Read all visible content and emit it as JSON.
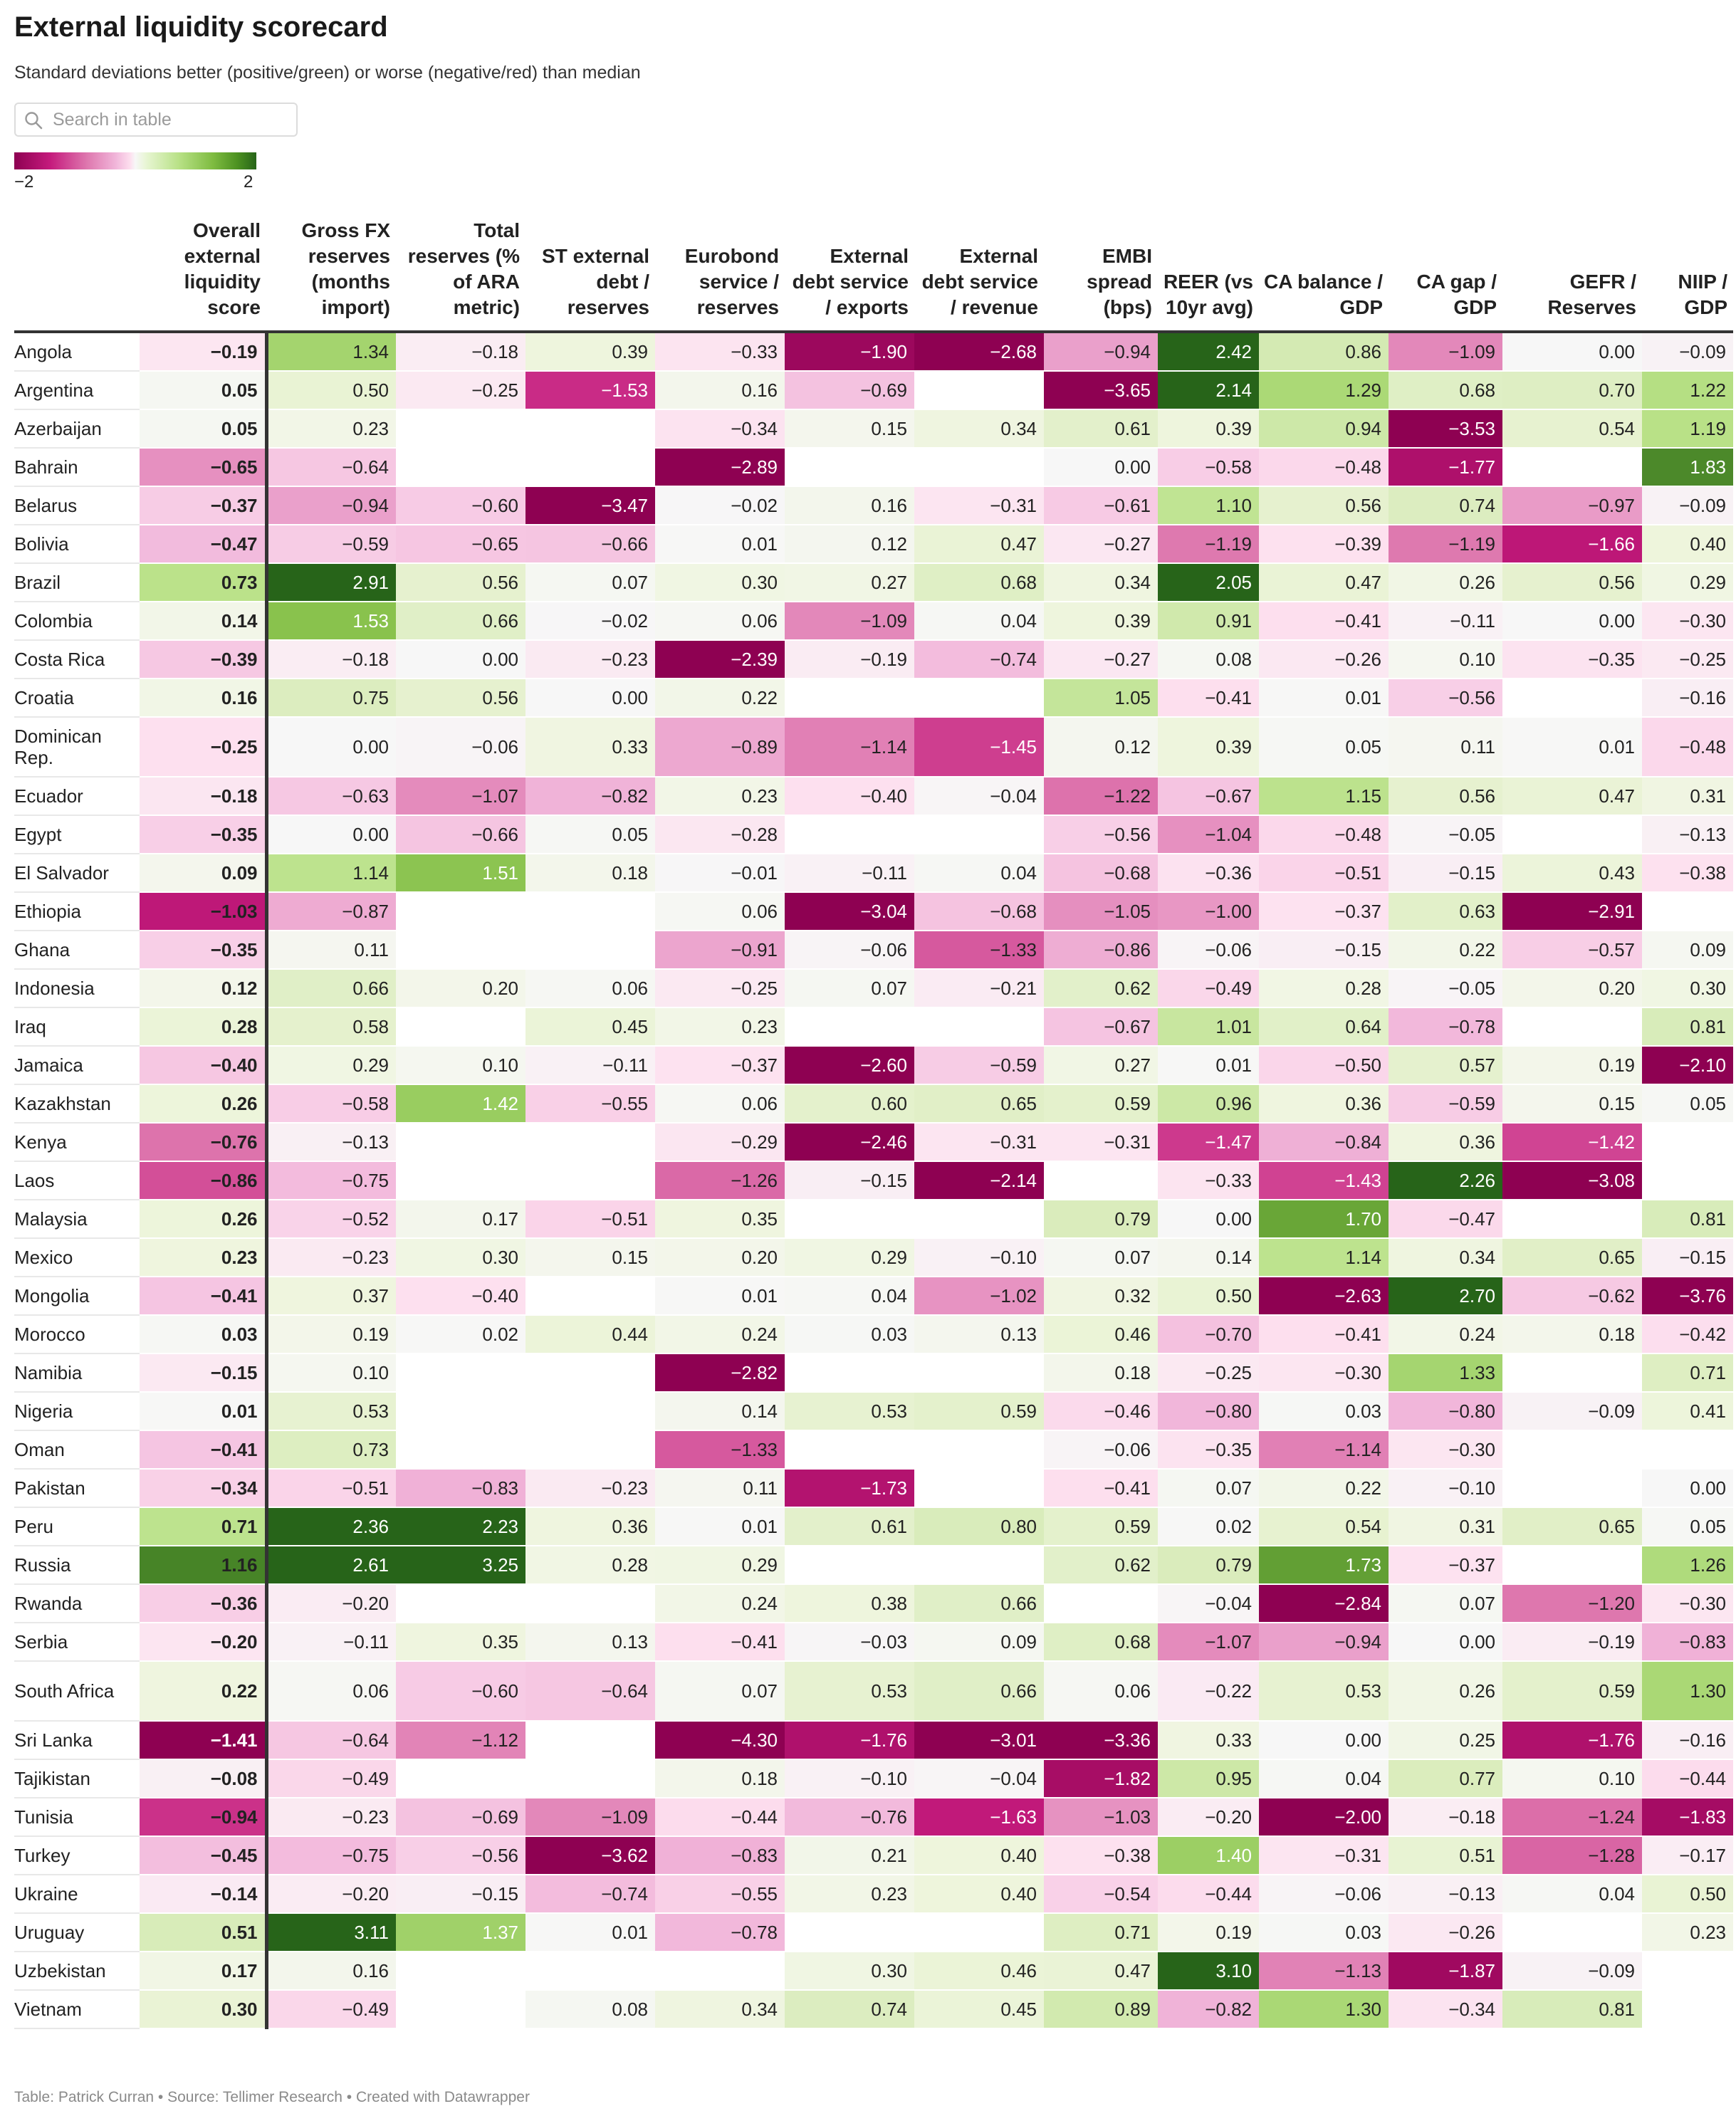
{
  "header": {
    "title": "External liquidity scorecard",
    "subtitle": "Standard deviations better (positive/green) or worse (negative/red) than median"
  },
  "search": {
    "placeholder": "Search in table"
  },
  "legend": {
    "min_label": "−2",
    "max_label": "2",
    "min": -2,
    "max": 2,
    "colors": {
      "negative": "#8e0152",
      "neutral": "#f7f7f7",
      "positive": "#276419"
    }
  },
  "columns": [
    "",
    "Overall external liquidity score",
    "Gross FX reserves (months import)",
    "Total reserves (% of ARA metric)",
    "ST external debt / reserves",
    "Eurobond service / reserves",
    "External debt service / exports",
    "External debt service / revenue",
    "EMBI spread (bps)",
    "REER (vs 10yr avg)",
    "CA balance / GDP",
    "CA gap / GDP",
    "GEFR / Reserves",
    "NIIP / GDP"
  ],
  "rows": [
    {
      "country": "Angola",
      "values": [
        -0.19,
        1.34,
        -0.18,
        0.39,
        -0.33,
        -1.9,
        -2.68,
        -0.94,
        2.42,
        0.86,
        -1.09,
        0.0,
        -0.09
      ]
    },
    {
      "country": "Argentina",
      "values": [
        0.05,
        0.5,
        -0.25,
        -1.53,
        0.16,
        -0.69,
        null,
        -3.65,
        2.14,
        1.29,
        0.68,
        0.7,
        1.22
      ]
    },
    {
      "country": "Azerbaijan",
      "values": [
        0.05,
        0.23,
        null,
        null,
        -0.34,
        0.15,
        0.34,
        0.61,
        0.39,
        0.94,
        -3.53,
        0.54,
        1.19
      ]
    },
    {
      "country": "Bahrain",
      "values": [
        -0.65,
        -0.64,
        null,
        null,
        -2.89,
        null,
        null,
        0.0,
        -0.58,
        -0.48,
        -1.77,
        null,
        1.83
      ]
    },
    {
      "country": "Belarus",
      "values": [
        -0.37,
        -0.94,
        -0.6,
        -3.47,
        -0.02,
        0.16,
        -0.31,
        -0.61,
        1.1,
        0.56,
        0.74,
        -0.97,
        -0.09
      ]
    },
    {
      "country": "Bolivia",
      "values": [
        -0.47,
        -0.59,
        -0.65,
        -0.66,
        0.01,
        0.12,
        0.47,
        -0.27,
        -1.19,
        -0.39,
        -1.19,
        -1.66,
        0.4
      ]
    },
    {
      "country": "Brazil",
      "values": [
        0.73,
        2.91,
        0.56,
        0.07,
        0.3,
        0.27,
        0.68,
        0.34,
        2.05,
        0.47,
        0.26,
        0.56,
        0.29
      ]
    },
    {
      "country": "Colombia",
      "values": [
        0.14,
        1.53,
        0.66,
        -0.02,
        0.06,
        -1.09,
        0.04,
        0.39,
        0.91,
        -0.41,
        -0.11,
        0.0,
        -0.3
      ]
    },
    {
      "country": "Costa Rica",
      "values": [
        -0.39,
        -0.18,
        0.0,
        -0.23,
        -2.39,
        -0.19,
        -0.74,
        -0.27,
        0.08,
        -0.26,
        0.1,
        -0.35,
        -0.25
      ]
    },
    {
      "country": "Croatia",
      "values": [
        0.16,
        0.75,
        0.56,
        0.0,
        0.22,
        null,
        null,
        1.05,
        -0.41,
        0.01,
        -0.56,
        null,
        -0.16
      ]
    },
    {
      "country": "Dominican Rep.",
      "values": [
        -0.25,
        0.0,
        -0.06,
        0.33,
        -0.89,
        -1.14,
        -1.45,
        0.12,
        0.39,
        0.05,
        0.11,
        0.01,
        -0.48
      ]
    },
    {
      "country": "Ecuador",
      "values": [
        -0.18,
        -0.63,
        -1.07,
        -0.82,
        0.23,
        -0.4,
        -0.04,
        -1.22,
        -0.67,
        1.15,
        0.56,
        0.47,
        0.31
      ]
    },
    {
      "country": "Egypt",
      "values": [
        -0.35,
        0.0,
        -0.66,
        0.05,
        -0.28,
        null,
        null,
        -0.56,
        -1.04,
        -0.48,
        -0.05,
        null,
        -0.13
      ]
    },
    {
      "country": "El Salvador",
      "values": [
        0.09,
        1.14,
        1.51,
        0.18,
        -0.01,
        -0.11,
        0.04,
        -0.68,
        -0.36,
        -0.51,
        -0.15,
        0.43,
        -0.38
      ]
    },
    {
      "country": "Ethiopia",
      "values": [
        -1.03,
        -0.87,
        null,
        null,
        0.06,
        -3.04,
        -0.68,
        -1.05,
        -1.0,
        -0.37,
        0.63,
        -2.91,
        null
      ]
    },
    {
      "country": "Ghana",
      "values": [
        -0.35,
        0.11,
        null,
        null,
        -0.91,
        -0.06,
        -1.33,
        -0.86,
        -0.06,
        -0.15,
        0.22,
        -0.57,
        0.09
      ]
    },
    {
      "country": "Indonesia",
      "values": [
        0.12,
        0.66,
        0.2,
        0.06,
        -0.25,
        0.07,
        -0.21,
        0.62,
        -0.49,
        0.28,
        -0.05,
        0.2,
        0.3
      ]
    },
    {
      "country": "Iraq",
      "values": [
        0.28,
        0.58,
        null,
        0.45,
        0.23,
        null,
        null,
        -0.67,
        1.01,
        0.64,
        -0.78,
        null,
        0.81
      ]
    },
    {
      "country": "Jamaica",
      "values": [
        -0.4,
        0.29,
        0.1,
        -0.11,
        -0.37,
        -2.6,
        -0.59,
        0.27,
        0.01,
        -0.5,
        0.57,
        0.19,
        -2.1
      ]
    },
    {
      "country": "Kazakhstan",
      "values": [
        0.26,
        -0.58,
        1.42,
        -0.55,
        0.06,
        0.6,
        0.65,
        0.59,
        0.96,
        0.36,
        -0.59,
        0.15,
        0.05
      ]
    },
    {
      "country": "Kenya",
      "values": [
        -0.76,
        -0.13,
        null,
        null,
        -0.29,
        -2.46,
        -0.31,
        -0.31,
        -1.47,
        -0.84,
        0.36,
        -1.42,
        null
      ]
    },
    {
      "country": "Laos",
      "values": [
        -0.86,
        -0.75,
        null,
        null,
        -1.26,
        -0.15,
        -2.14,
        null,
        -0.33,
        -1.43,
        2.26,
        -3.08,
        null
      ]
    },
    {
      "country": "Malaysia",
      "values": [
        0.26,
        -0.52,
        0.17,
        -0.51,
        0.35,
        null,
        null,
        0.79,
        0.0,
        1.7,
        -0.47,
        null,
        0.81
      ]
    },
    {
      "country": "Mexico",
      "values": [
        0.23,
        -0.23,
        0.3,
        0.15,
        0.2,
        0.29,
        -0.1,
        0.07,
        0.14,
        1.14,
        0.34,
        0.65,
        -0.15
      ]
    },
    {
      "country": "Mongolia",
      "values": [
        -0.41,
        0.37,
        -0.4,
        null,
        0.01,
        0.04,
        -1.02,
        0.32,
        0.5,
        -2.63,
        2.7,
        -0.62,
        -3.76
      ]
    },
    {
      "country": "Morocco",
      "values": [
        0.03,
        0.19,
        0.02,
        0.44,
        0.24,
        0.03,
        0.13,
        0.46,
        -0.7,
        -0.41,
        0.24,
        0.18,
        -0.42
      ]
    },
    {
      "country": "Namibia",
      "values": [
        -0.15,
        0.1,
        null,
        null,
        -2.82,
        null,
        null,
        0.18,
        -0.25,
        -0.3,
        1.33,
        null,
        0.71
      ]
    },
    {
      "country": "Nigeria",
      "values": [
        0.01,
        0.53,
        null,
        null,
        0.14,
        0.53,
        0.59,
        -0.46,
        -0.8,
        0.03,
        -0.8,
        -0.09,
        0.41
      ]
    },
    {
      "country": "Oman",
      "values": [
        -0.41,
        0.73,
        null,
        null,
        -1.33,
        null,
        null,
        -0.06,
        -0.35,
        -1.14,
        -0.3,
        null,
        null
      ]
    },
    {
      "country": "Pakistan",
      "values": [
        -0.34,
        -0.51,
        -0.83,
        -0.23,
        0.11,
        -1.73,
        null,
        -0.41,
        0.07,
        0.22,
        -0.1,
        null,
        0.0
      ]
    },
    {
      "country": "Peru",
      "values": [
        0.71,
        2.36,
        2.23,
        0.36,
        0.01,
        0.61,
        0.8,
        0.59,
        0.02,
        0.54,
        0.31,
        0.65,
        0.05
      ]
    },
    {
      "country": "Russia",
      "values": [
        1.16,
        2.61,
        3.25,
        0.28,
        0.29,
        null,
        null,
        0.62,
        0.79,
        1.73,
        -0.37,
        null,
        1.26
      ]
    },
    {
      "country": "Rwanda",
      "values": [
        -0.36,
        -0.2,
        null,
        null,
        0.24,
        0.38,
        0.66,
        null,
        -0.04,
        -2.84,
        0.07,
        -1.2,
        -0.3
      ]
    },
    {
      "country": "Serbia",
      "values": [
        -0.2,
        -0.11,
        0.35,
        0.13,
        -0.41,
        -0.03,
        0.09,
        0.68,
        -1.07,
        -0.94,
        0.0,
        -0.19,
        -0.83
      ]
    },
    {
      "country": "South Africa",
      "values": [
        0.22,
        0.06,
        -0.6,
        -0.64,
        0.07,
        0.53,
        0.66,
        0.06,
        -0.22,
        0.53,
        0.26,
        0.59,
        1.3
      ]
    },
    {
      "country": "Sri Lanka",
      "values": [
        -1.41,
        -0.64,
        -1.12,
        null,
        -4.3,
        -1.76,
        -3.01,
        -3.36,
        0.33,
        0.0,
        0.25,
        -1.76,
        -0.16
      ]
    },
    {
      "country": "Tajikistan",
      "values": [
        -0.08,
        -0.49,
        null,
        null,
        0.18,
        -0.1,
        -0.04,
        -1.82,
        0.95,
        0.04,
        0.77,
        0.1,
        -0.44
      ]
    },
    {
      "country": "Tunisia",
      "values": [
        -0.94,
        -0.23,
        -0.69,
        -1.09,
        -0.44,
        -0.76,
        -1.63,
        -1.03,
        -0.2,
        -2.0,
        -0.18,
        -1.24,
        -1.83
      ]
    },
    {
      "country": "Turkey",
      "values": [
        -0.45,
        -0.75,
        -0.56,
        -3.62,
        -0.83,
        0.21,
        0.4,
        -0.38,
        1.4,
        -0.31,
        0.51,
        -1.28,
        -0.17
      ]
    },
    {
      "country": "Ukraine",
      "values": [
        -0.14,
        -0.2,
        -0.15,
        -0.74,
        -0.55,
        0.23,
        0.4,
        -0.54,
        -0.44,
        -0.06,
        -0.13,
        0.04,
        0.5
      ]
    },
    {
      "country": "Uruguay",
      "values": [
        0.51,
        3.11,
        1.37,
        0.01,
        -0.78,
        null,
        null,
        0.71,
        0.19,
        0.03,
        -0.26,
        null,
        0.23
      ]
    },
    {
      "country": "Uzbekistan",
      "values": [
        0.17,
        0.16,
        null,
        null,
        null,
        0.3,
        0.46,
        0.47,
        3.1,
        -1.13,
        -1.87,
        -0.09,
        null
      ]
    },
    {
      "country": "Vietnam",
      "values": [
        0.3,
        -0.49,
        null,
        0.08,
        0.34,
        0.74,
        0.45,
        0.89,
        -0.82,
        1.3,
        -0.34,
        0.81,
        null
      ]
    }
  ],
  "footer": "Table: Patrick Curran • Source: Tellimer Research • Created with Datawrapper"
}
